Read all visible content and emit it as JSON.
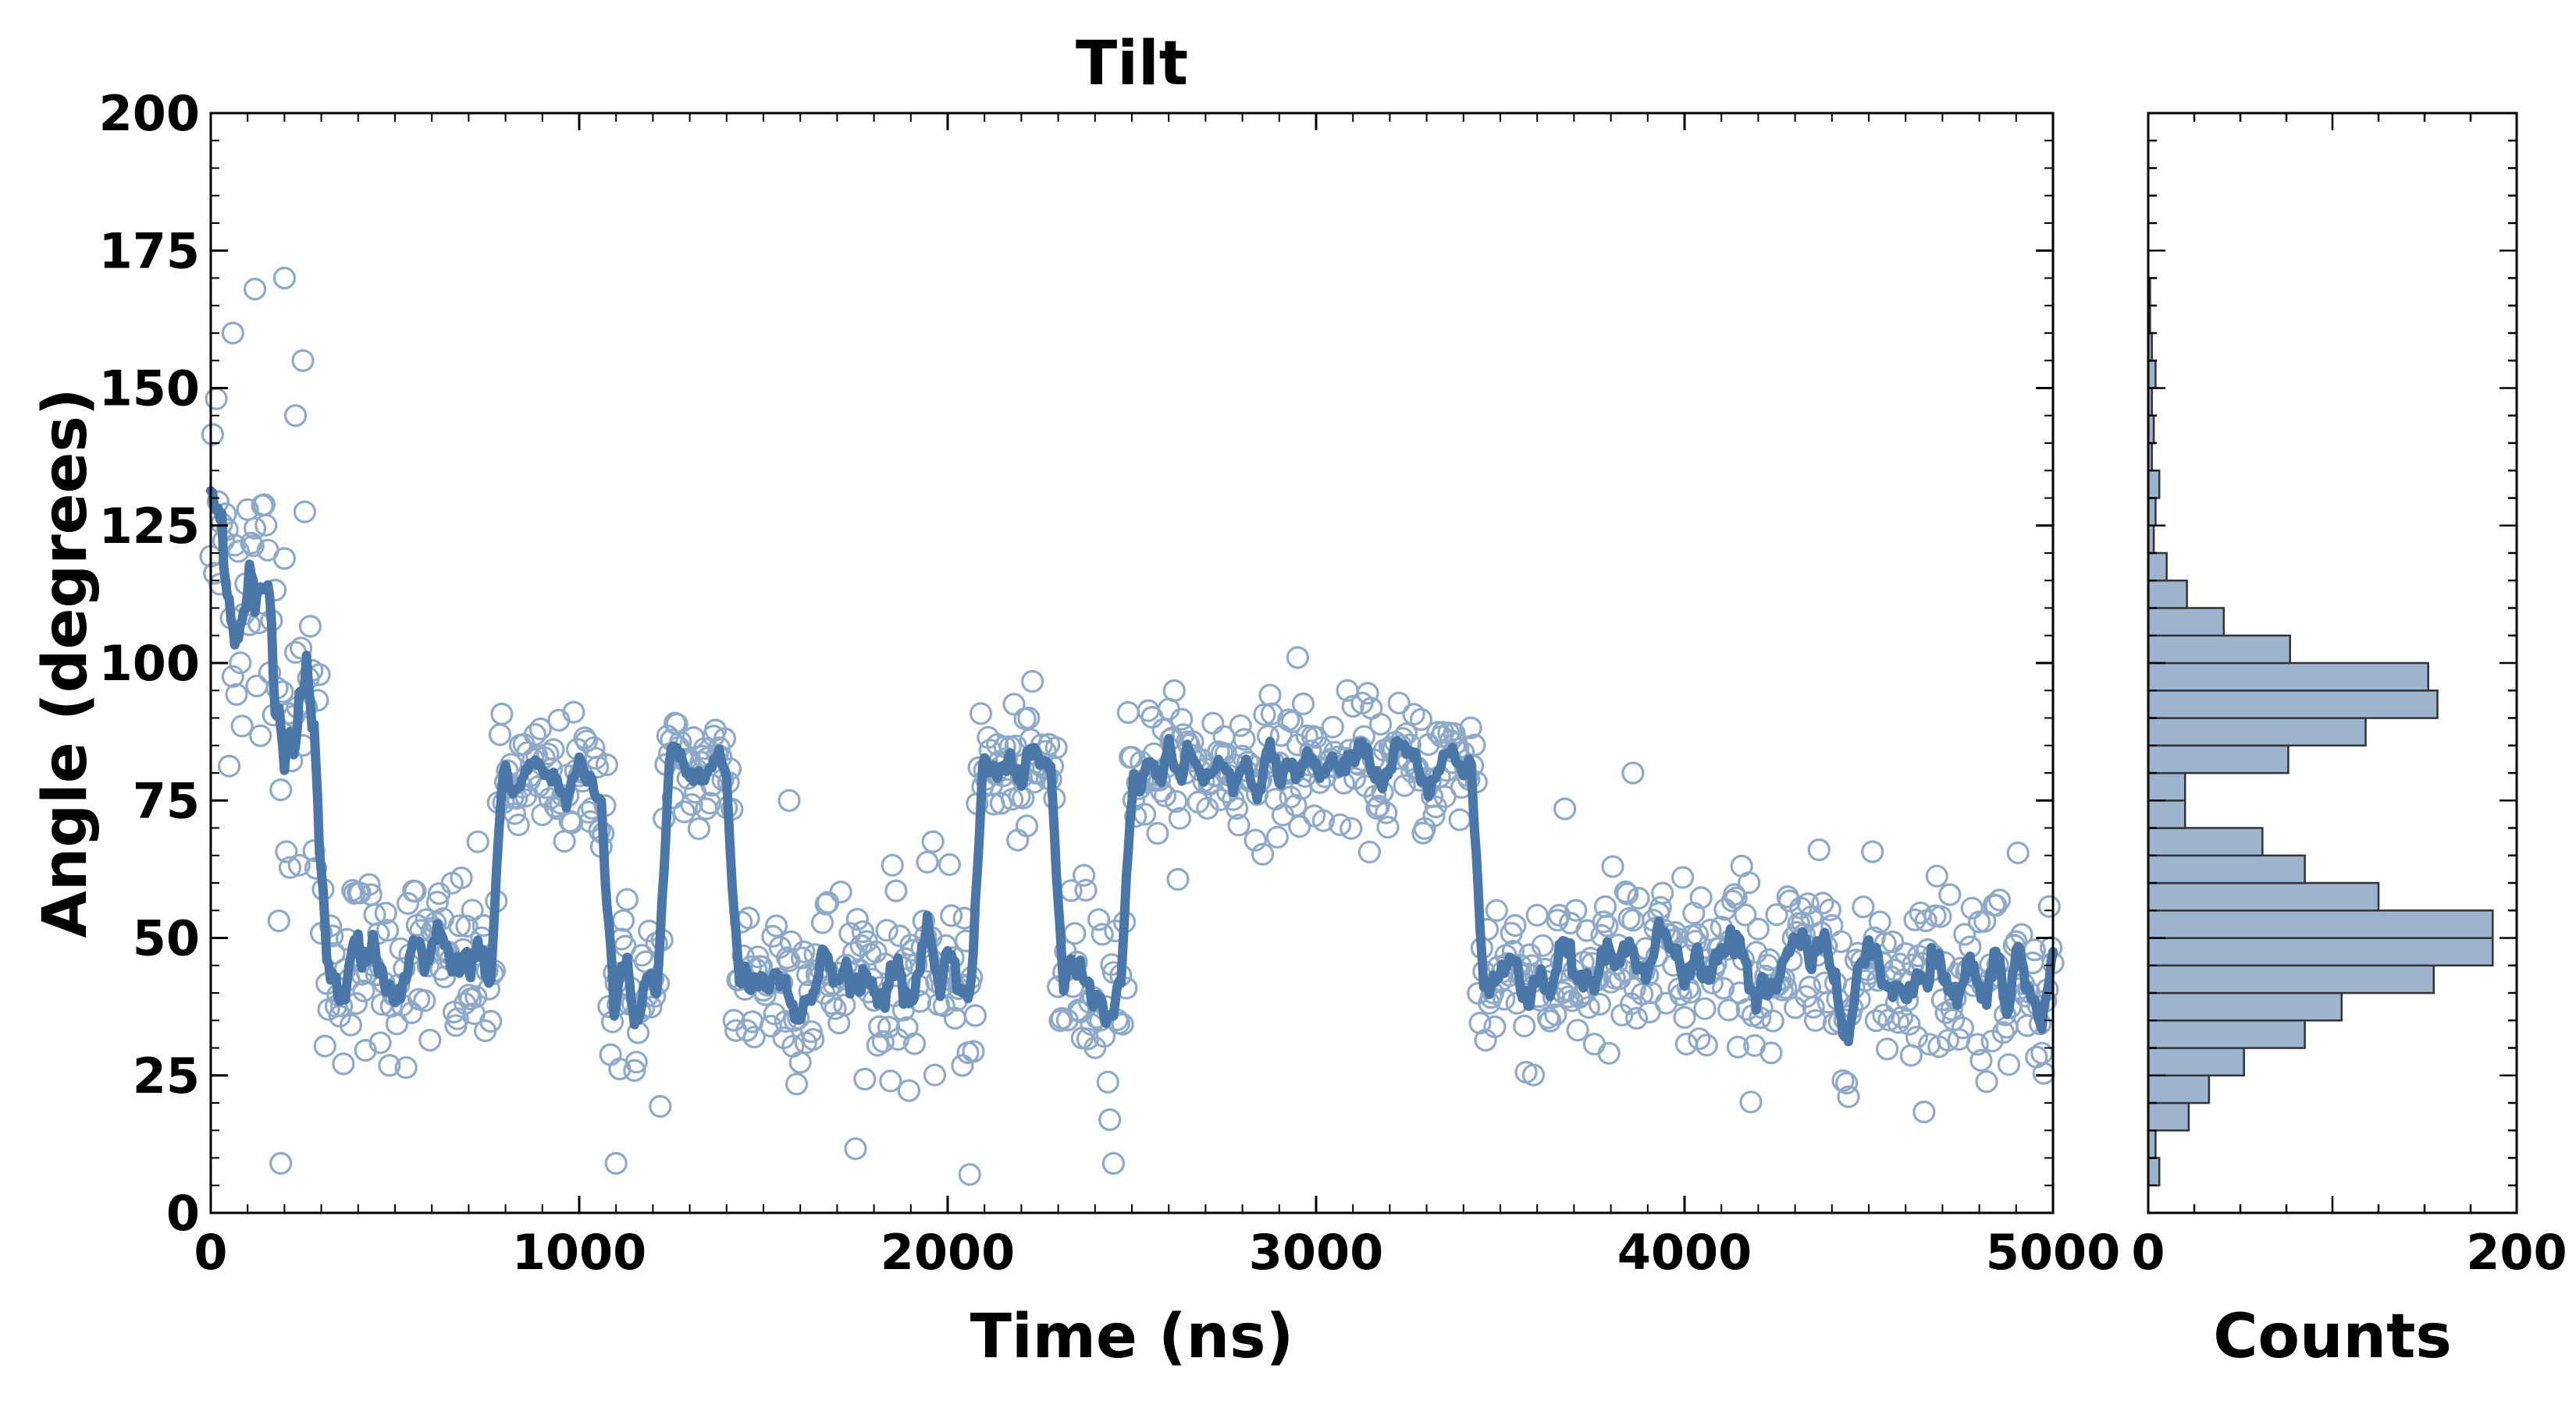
{
  "chart_data": [
    {
      "type": "scatter",
      "title": "Tilt",
      "xlabel": "Time (ns)",
      "ylabel": "Angle (degrees)",
      "xlim": [
        0,
        5000
      ],
      "ylim": [
        0,
        200
      ],
      "xticks": [
        "0",
        "1000",
        "2000",
        "3000",
        "4000",
        "5000"
      ],
      "yticks": [
        "0",
        "25",
        "50",
        "75",
        "100",
        "125",
        "150",
        "175",
        "200"
      ],
      "grid": false,
      "series": [
        {
          "kind": "scatter",
          "marker": "open-circle",
          "color": "#8ea9c8",
          "sampling_interval": 5,
          "segments": [
            {
              "start": 0,
              "end": 300,
              "mean_start": 125,
              "mean_end": 85,
              "spread": 18
            },
            {
              "start": 300,
              "end": 780,
              "mean": 45,
              "spread": 9
            },
            {
              "start": 780,
              "end": 1080,
              "mean": 78,
              "spread": 6
            },
            {
              "start": 1080,
              "end": 1230,
              "mean": 40,
              "spread": 9
            },
            {
              "start": 1230,
              "end": 1420,
              "mean": 80,
              "spread": 6
            },
            {
              "start": 1420,
              "end": 2080,
              "mean": 43,
              "spread": 9
            },
            {
              "start": 2080,
              "end": 2300,
              "mean": 80,
              "spread": 6
            },
            {
              "start": 2300,
              "end": 2490,
              "mean": 43,
              "spread": 9
            },
            {
              "start": 2490,
              "end": 3440,
              "mean": 81,
              "spread": 6
            },
            {
              "start": 3440,
              "end": 5000,
              "mean": 44,
              "spread": 9
            }
          ],
          "outliers": [
            {
              "x": 120,
              "y": 168
            },
            {
              "x": 200,
              "y": 170
            },
            {
              "x": 250,
              "y": 155
            },
            {
              "x": 60,
              "y": 160
            },
            {
              "x": 230,
              "y": 145
            },
            {
              "x": 190,
              "y": 9
            },
            {
              "x": 1100,
              "y": 9
            },
            {
              "x": 2060,
              "y": 7
            },
            {
              "x": 2450,
              "y": 9
            },
            {
              "x": 1570,
              "y": 75
            },
            {
              "x": 3860,
              "y": 80
            },
            {
              "x": 2950,
              "y": 101
            }
          ]
        },
        {
          "kind": "line",
          "color": "#4a77a8",
          "smoothing": "running average of the scatter series"
        }
      ]
    },
    {
      "type": "bar",
      "orientation": "horizontal",
      "xlabel": "Counts",
      "ylabel": "",
      "xlim": [
        0,
        200
      ],
      "ylim": [
        0,
        200
      ],
      "xticks": [
        "0",
        "200"
      ],
      "bin_width": 5,
      "bin_starts": [
        5,
        10,
        15,
        20,
        25,
        30,
        35,
        40,
        45,
        50,
        55,
        60,
        65,
        70,
        75,
        80,
        85,
        90,
        95,
        100,
        105,
        110,
        115,
        120,
        125,
        130,
        135,
        140,
        145,
        150,
        155,
        160,
        165
      ],
      "values": [
        6,
        4,
        22,
        33,
        52,
        85,
        105,
        155,
        187,
        187,
        125,
        85,
        62,
        20,
        20,
        76,
        118,
        157,
        152,
        77,
        41,
        21,
        10,
        3,
        4,
        6,
        2,
        3,
        2,
        4,
        2,
        1,
        1
      ],
      "fill": "#9db4cf",
      "edge": "#333333"
    }
  ]
}
